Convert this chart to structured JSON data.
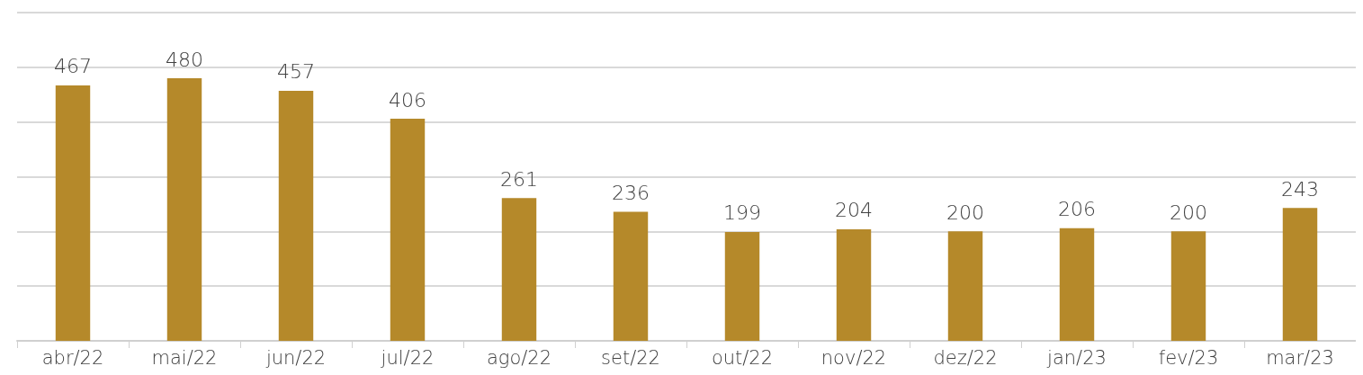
{
  "chart_data": {
    "type": "bar",
    "categories": [
      "abr/22",
      "mai/22",
      "jun/22",
      "jul/22",
      "ago/22",
      "set/22",
      "out/22",
      "nov/22",
      "dez/22",
      "jan/23",
      "fev/23",
      "mar/23"
    ],
    "values": [
      467,
      480,
      457,
      406,
      261,
      236,
      199,
      204,
      200,
      206,
      200,
      243
    ],
    "color": "#b5892a",
    "data_labels": true,
    "grid": "y",
    "ylim": [
      0,
      600
    ],
    "yticks": [
      {
        "value": 0,
        "label": null
      },
      {
        "value": 100,
        "label": null
      },
      {
        "value": 200,
        "label": null
      },
      {
        "value": 300,
        "label": null
      },
      {
        "value": 400,
        "label": null
      },
      {
        "value": 500,
        "label": null
      },
      {
        "value": 600,
        "label": null
      }
    ]
  }
}
